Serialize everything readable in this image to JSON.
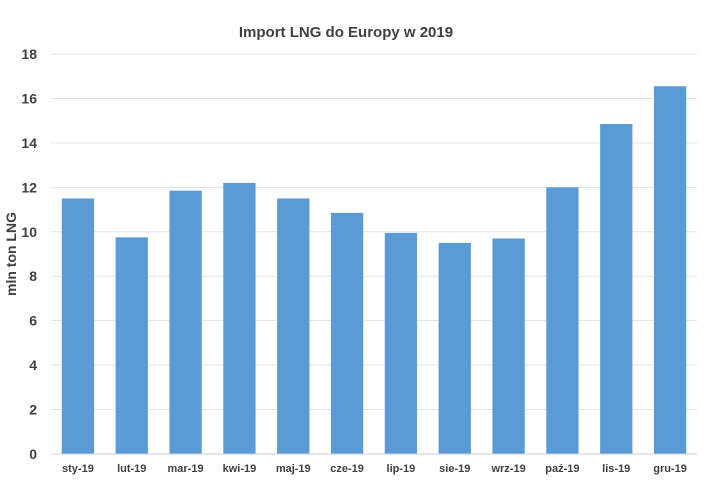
{
  "chart_data": {
    "type": "bar",
    "title": "Import LNG do Europy w 2019",
    "xlabel": "",
    "ylabel": "mln ton LNG",
    "categories": [
      "sty-19",
      "lut-19",
      "mar-19",
      "kwi-19",
      "maj-19",
      "cze-19",
      "lip-19",
      "sie-19",
      "wrz-19",
      "paź-19",
      "lis-19",
      "gru-19"
    ],
    "values": [
      11.5,
      9.75,
      11.85,
      12.2,
      11.5,
      10.85,
      9.95,
      9.5,
      9.7,
      12.0,
      14.85,
      16.55
    ],
    "ylim": [
      0,
      18
    ],
    "yticks": [
      0,
      2,
      4,
      6,
      8,
      10,
      12,
      14,
      16,
      18
    ],
    "grid": true,
    "legend": "none",
    "bar_color": "#5b9bd5"
  }
}
